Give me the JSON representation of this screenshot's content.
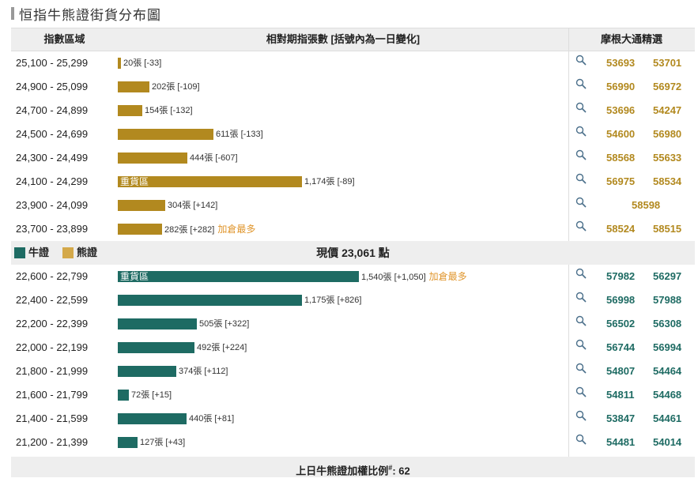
{
  "title": "恒指牛熊證街貨分布圖",
  "header": {
    "range_col": "指數區域",
    "change_col": "相對期指張數 [括號內為一日變化]",
    "pick_col": "摩根大通精選"
  },
  "legend": {
    "bull_label": "牛證",
    "bear_label": "熊證",
    "bull_color": "#1e6b63",
    "bear_color": "#b2891f"
  },
  "current": {
    "prefix": "現價",
    "value": "23,061",
    "suffix": "點"
  },
  "footer": {
    "label": "上日牛熊證加權比例",
    "mark": "#",
    "value": ": 62"
  },
  "bear_rows": [
    {
      "range": "25,100 - 25,299",
      "count": 20,
      "label": "20張 [-33]",
      "zone": "",
      "most": "",
      "codes": [
        "53693",
        "53701"
      ]
    },
    {
      "range": "24,900 - 25,099",
      "count": 202,
      "label": "202張 [-109]",
      "zone": "",
      "most": "",
      "codes": [
        "56990",
        "56972"
      ]
    },
    {
      "range": "24,700 - 24,899",
      "count": 154,
      "label": "154張 [-132]",
      "zone": "",
      "most": "",
      "codes": [
        "53696",
        "54247"
      ]
    },
    {
      "range": "24,500 - 24,699",
      "count": 611,
      "label": "611張 [-133]",
      "zone": "",
      "most": "",
      "codes": [
        "54600",
        "56980"
      ]
    },
    {
      "range": "24,300 - 24,499",
      "count": 444,
      "label": "444張 [-607]",
      "zone": "",
      "most": "",
      "codes": [
        "58568",
        "55633"
      ]
    },
    {
      "range": "24,100 - 24,299",
      "count": 1174,
      "label": "1,174張 [-89]",
      "zone": "重貨區",
      "most": "",
      "codes": [
        "56975",
        "58534"
      ]
    },
    {
      "range": "23,900 - 24,099",
      "count": 304,
      "label": "304張 [+142]",
      "zone": "",
      "most": "",
      "codes": [
        "58598"
      ]
    },
    {
      "range": "23,700 - 23,899",
      "count": 282,
      "label": "282張 [+282]",
      "zone": "",
      "most": "加倉最多",
      "codes": [
        "58524",
        "58515"
      ]
    }
  ],
  "bull_rows": [
    {
      "range": "22,600 - 22,799",
      "count": 1540,
      "label": "1,540張 [+1,050]",
      "zone": "重貨區",
      "most": "加倉最多",
      "codes": [
        "57982",
        "56297"
      ]
    },
    {
      "range": "22,400 - 22,599",
      "count": 1175,
      "label": "1,175張 [+826]",
      "zone": "",
      "most": "",
      "codes": [
        "56998",
        "57988"
      ]
    },
    {
      "range": "22,200 - 22,399",
      "count": 505,
      "label": "505張 [+322]",
      "zone": "",
      "most": "",
      "codes": [
        "56502",
        "56308"
      ]
    },
    {
      "range": "22,000 - 22,199",
      "count": 492,
      "label": "492張 [+224]",
      "zone": "",
      "most": "",
      "codes": [
        "56744",
        "56994"
      ]
    },
    {
      "range": "21,800 - 21,999",
      "count": 374,
      "label": "374張 [+112]",
      "zone": "",
      "most": "",
      "codes": [
        "54807",
        "54464"
      ]
    },
    {
      "range": "21,600 - 21,799",
      "count": 72,
      "label": "72張 [+15]",
      "zone": "",
      "most": "",
      "codes": [
        "54811",
        "54468"
      ]
    },
    {
      "range": "21,400 - 21,599",
      "count": 440,
      "label": "440張 [+81]",
      "zone": "",
      "most": "",
      "codes": [
        "53847",
        "54461"
      ]
    },
    {
      "range": "21,200 - 21,399",
      "count": 127,
      "label": "127張 [+43]",
      "zone": "",
      "most": "",
      "codes": [
        "54481",
        "54014"
      ]
    }
  ]
}
